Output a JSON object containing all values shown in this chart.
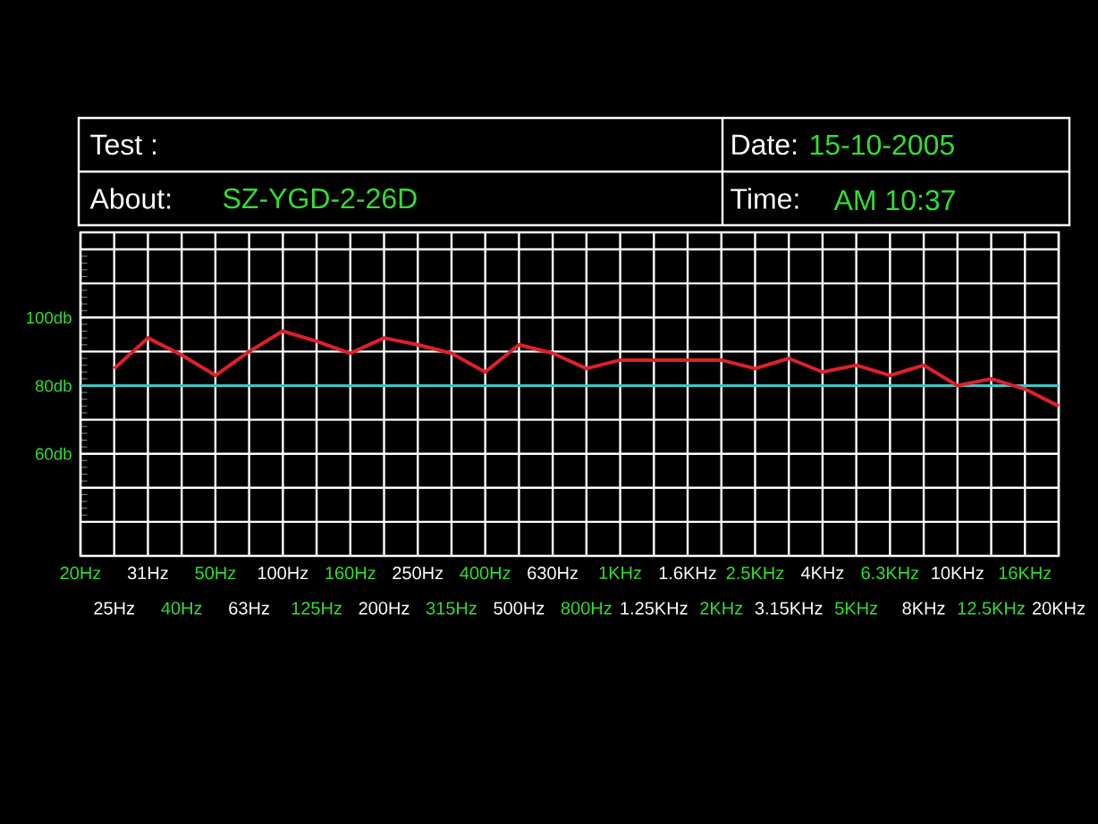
{
  "chart_data": {
    "type": "line",
    "categories": [
      "20Hz",
      "25Hz",
      "31Hz",
      "40Hz",
      "50Hz",
      "63Hz",
      "100Hz",
      "125Hz",
      "160Hz",
      "200Hz",
      "250Hz",
      "315Hz",
      "400Hz",
      "500Hz",
      "630Hz",
      "800Hz",
      "1KHz",
      "1.25KHz",
      "1.6KHz",
      "2KHz",
      "2.5KHz",
      "3.15KHz",
      "4KHz",
      "5KHz",
      "6.3KHz",
      "8KHz",
      "10KHz",
      "12.5KHz",
      "16KHz",
      "20KHz"
    ],
    "series": [
      {
        "color": "#e0202a",
        "values": [
          null,
          85,
          94,
          89,
          83,
          90,
          96,
          93,
          89.5,
          94,
          92,
          89.5,
          84,
          92,
          89.5,
          85,
          87.5,
          87.5,
          87.5,
          87.5,
          85,
          88,
          84,
          86,
          83,
          86,
          80,
          82,
          79,
          74
        ]
      }
    ],
    "ylim": [
      30,
      125
    ],
    "yticks": [
      {
        "value": 40,
        "label": null
      },
      {
        "value": 50,
        "label": null
      },
      {
        "value": 60,
        "label": "60db"
      },
      {
        "value": 70,
        "label": null
      },
      {
        "value": 80,
        "label": "80db"
      },
      {
        "value": 90,
        "label": null
      },
      {
        "value": 100,
        "label": "100db"
      },
      {
        "value": 110,
        "label": null
      },
      {
        "value": 120,
        "label": null
      }
    ],
    "grid": true,
    "ref_lines": [
      {
        "axis": "y",
        "value": 80,
        "color": "#3cc8c8"
      }
    ],
    "annotations": [
      "Test :",
      "About:",
      "SZ-YGD-2-26D",
      "Date:",
      "15-10-2005",
      "Time:",
      "AM 10:37"
    ]
  }
}
